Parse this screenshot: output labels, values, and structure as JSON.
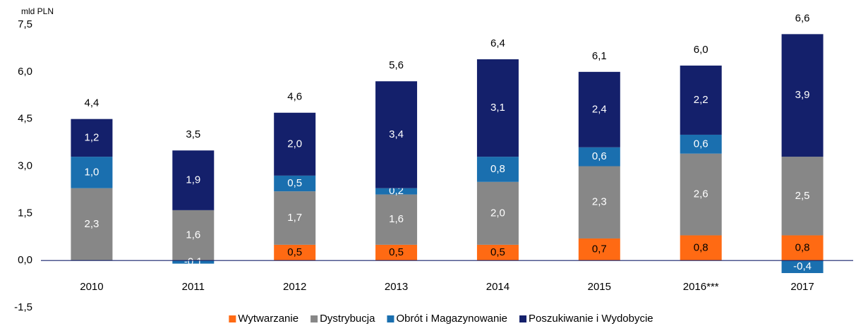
{
  "chart_data": {
    "type": "stacked_bar",
    "y_unit_label": "mld PLN",
    "categories": [
      "2010",
      "2011",
      "2012",
      "2013",
      "2014",
      "2015",
      "2016***",
      "2017"
    ],
    "series": [
      {
        "name": "Wytwarzanie",
        "color": "#ff6a13",
        "label_color": "#000000",
        "values": [
          null,
          null,
          0.5,
          0.5,
          0.5,
          0.7,
          0.8,
          0.8
        ],
        "value_labels": [
          null,
          null,
          "0,5",
          "0,5",
          "0,5",
          "0,7",
          "0,8",
          "0,8"
        ]
      },
      {
        "name": "Dystrybucja",
        "color": "#878787",
        "label_color": "#ffffff",
        "values": [
          2.3,
          1.6,
          1.7,
          1.6,
          2.0,
          2.3,
          2.6,
          2.5
        ],
        "value_labels": [
          "2,3",
          "1,6",
          "1,7",
          "1,6",
          "2,0",
          "2,3",
          "2,6",
          "2,5"
        ]
      },
      {
        "name": "Obrót i Magazynowanie",
        "color": "#1a6faf",
        "label_color": "#ffffff",
        "values": [
          1.0,
          -0.1,
          0.5,
          0.2,
          0.8,
          0.6,
          0.6,
          -0.4
        ],
        "value_labels": [
          "1,0",
          "-0,1",
          "0,5",
          "0,2",
          "0,8",
          "0,6",
          "0,6",
          "-0,4"
        ]
      },
      {
        "name": "Poszukiwanie i Wydobycie",
        "color": "#14206b",
        "label_color": "#ffffff",
        "values": [
          1.2,
          1.9,
          2.0,
          3.4,
          3.1,
          2.4,
          2.2,
          3.9
        ],
        "value_labels": [
          "1,2",
          "1,9",
          "2,0",
          "3,4",
          "3,1",
          "2,4",
          "2,2",
          "3,9"
        ]
      }
    ],
    "totals": [
      4.4,
      3.5,
      4.6,
      5.6,
      6.4,
      6.1,
      6.0,
      6.6
    ],
    "total_labels": [
      "4,4",
      "3,5",
      "4,6",
      "5,6",
      "6,4",
      "6,1",
      "6,0",
      "6,6"
    ],
    "ylim": [
      -1.5,
      7.5
    ],
    "yticks": [
      {
        "value": -1.5,
        "label": "-1,5"
      },
      {
        "value": 0,
        "label": "0,0"
      },
      {
        "value": 1.5,
        "label": "1,5"
      },
      {
        "value": 3,
        "label": "3,0"
      },
      {
        "value": 4.5,
        "label": "4,5"
      },
      {
        "value": 6,
        "label": "6,0"
      },
      {
        "value": 7.5,
        "label": "7,5"
      }
    ],
    "grid": false,
    "legend": "bottom"
  }
}
